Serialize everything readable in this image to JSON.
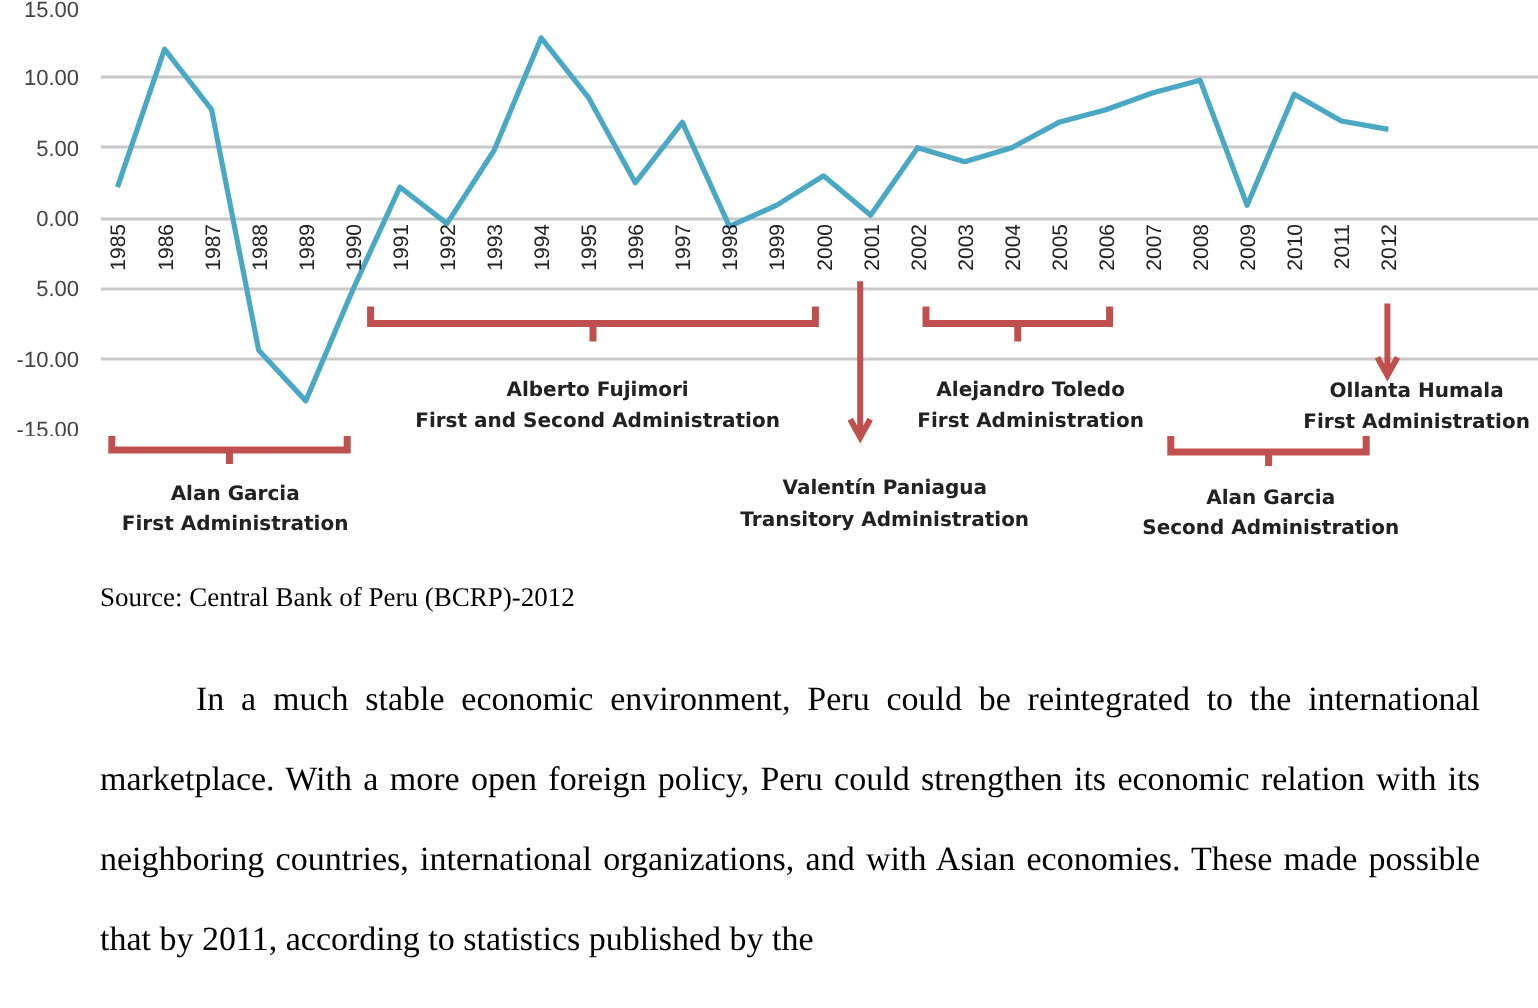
{
  "chart_data": {
    "type": "line",
    "categories": [
      "1985",
      "1986",
      "1987",
      "1988",
      "1989",
      "1990",
      "1991",
      "1992",
      "1993",
      "1994",
      "1995",
      "1996",
      "1997",
      "1998",
      "1999",
      "2000",
      "2001",
      "2002",
      "2003",
      "2004",
      "2005",
      "2006",
      "2007",
      "2008",
      "2009",
      "2010",
      "2011",
      "2012"
    ],
    "series": [
      {
        "color": "#4ba8c4",
        "values": [
          2.2,
          12.0,
          7.7,
          -9.4,
          -13.0,
          -5.1,
          2.2,
          -0.4,
          4.8,
          12.8,
          8.6,
          2.5,
          6.8,
          -0.6,
          0.9,
          3.0,
          0.2,
          5.0,
          4.0,
          5.0,
          6.8,
          7.7,
          8.9,
          9.8,
          0.9,
          8.8,
          6.9,
          6.3
        ]
      }
    ],
    "ylim": [
      -15,
      15
    ],
    "yticks": [
      {
        "value": 15,
        "label": "15.00"
      },
      {
        "value": 10,
        "label": "10.00"
      },
      {
        "value": 5,
        "label": "5.00"
      },
      {
        "value": 0,
        "label": "0.00"
      },
      {
        "value": -5,
        "label": "5.00"
      },
      {
        "value": -10,
        "label": "-10.00"
      },
      {
        "value": -15,
        "label": "-15.00"
      }
    ],
    "grid": "y",
    "marker": "none",
    "line_style": "solid",
    "annotations": [
      "Alan Garcia\nFirst Administration",
      "Alberto Fujimori\nFirst and Second Administration",
      "Valentín Paniagua\nTransitory Administration",
      "Alejandro Toledo\nFirst Administration",
      "Alan Garcia\nSecond Administration",
      "Ollanta Humala\nFirst Administration",
      "Source: Central Bank of Peru (BCRP)-2012",
      "In a much stable economic environment, Peru could be reintegrated to the international marketplace. With a more open foreign policy, Peru could strengthen its economic relation with its neighboring countries, international organizations, and with Asian economies. These made possible that by 2011, according to statistics published by the"
    ]
  }
}
